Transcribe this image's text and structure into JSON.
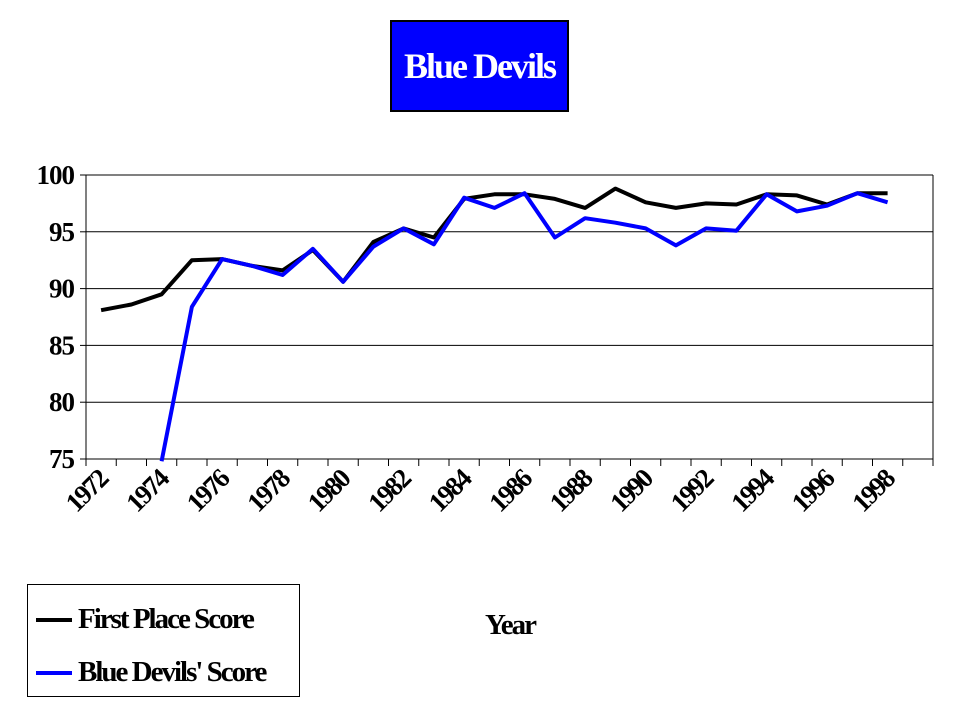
{
  "chart_data": {
    "type": "line",
    "title": "Blue Devils",
    "xlabel": "Year",
    "ylabel": "",
    "ylim": [
      75,
      100
    ],
    "yticks": [
      "75",
      "80",
      "85",
      "90",
      "95",
      "100"
    ],
    "x": [
      1972,
      1973,
      1974,
      1975,
      1976,
      1977,
      1978,
      1979,
      1980,
      1981,
      1982,
      1983,
      1984,
      1985,
      1986,
      1987,
      1988,
      1989,
      1990,
      1991,
      1992,
      1993,
      1994,
      1995,
      1996,
      1997,
      1998,
      1999
    ],
    "xtick_labels": [
      "1972",
      "1974",
      "1976",
      "1978",
      "1980",
      "1982",
      "1984",
      "1986",
      "1988",
      "1990",
      "1992",
      "1994",
      "1996",
      "1998"
    ],
    "grid": true,
    "legend_position": "bottom-left",
    "series": [
      {
        "name": "First Place Score",
        "color": "#000000",
        "values": [
          88.1,
          88.6,
          89.5,
          92.5,
          92.6,
          92.0,
          91.6,
          93.4,
          90.6,
          94.1,
          95.3,
          94.5,
          97.9,
          98.3,
          98.3,
          97.9,
          97.1,
          98.8,
          97.6,
          97.1,
          97.5,
          97.4,
          98.3,
          98.2,
          97.4,
          98.4,
          98.4,
          null
        ]
      },
      {
        "name": "Blue Devils' Score",
        "color": "#0000ff",
        "values": [
          null,
          null,
          74.8,
          88.4,
          92.6,
          92.0,
          91.2,
          93.5,
          90.6,
          93.7,
          95.3,
          93.9,
          98.0,
          97.1,
          98.4,
          94.5,
          96.2,
          95.8,
          95.3,
          93.8,
          95.3,
          95.1,
          98.3,
          96.8,
          97.3,
          98.4,
          97.6,
          null
        ]
      }
    ]
  }
}
